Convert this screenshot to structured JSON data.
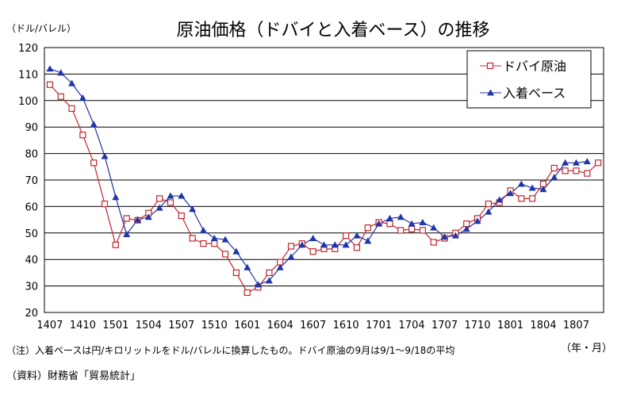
{
  "chart_data": {
    "type": "line",
    "title": "原油価格（ドバイと入着ベース）の推移",
    "ylabel": "（ドル/バレル）",
    "xlabel": "（年・月）",
    "ylim": [
      20,
      120
    ],
    "yticks": [
      20,
      30,
      40,
      50,
      60,
      70,
      80,
      90,
      100,
      110,
      120
    ],
    "grid": true,
    "legend_position": "top-right",
    "x": [
      "1407",
      "1408",
      "1409",
      "1410",
      "1411",
      "1412",
      "1501",
      "1502",
      "1503",
      "1504",
      "1505",
      "1506",
      "1507",
      "1508",
      "1509",
      "1510",
      "1511",
      "1512",
      "1601",
      "1602",
      "1603",
      "1604",
      "1605",
      "1606",
      "1607",
      "1608",
      "1609",
      "1610",
      "1611",
      "1612",
      "1701",
      "1702",
      "1703",
      "1704",
      "1705",
      "1706",
      "1707",
      "1708",
      "1709",
      "1710",
      "1711",
      "1712",
      "1801",
      "1802",
      "1803",
      "1804",
      "1805",
      "1806",
      "1807",
      "1808",
      "1809"
    ],
    "xtick_labels": [
      "1407",
      "1410",
      "1501",
      "1504",
      "1507",
      "1510",
      "1601",
      "1604",
      "1607",
      "1610",
      "1701",
      "1704",
      "1707",
      "1710",
      "1801",
      "1804",
      "1807"
    ],
    "series": [
      {
        "name": "ドバイ原油",
        "marker": "square-open",
        "color": "#c0282d",
        "values": [
          106,
          101.5,
          97,
          87,
          76.5,
          61,
          45.5,
          55.5,
          54.8,
          57.5,
          63,
          61.5,
          56.5,
          48,
          46,
          46,
          42,
          35,
          27.5,
          29.5,
          35,
          39,
          45,
          46,
          43,
          44,
          44,
          49,
          44.5,
          52,
          54,
          53.5,
          51,
          51.5,
          51,
          46.5,
          48,
          50,
          53.5,
          55.5,
          61,
          61.5,
          66,
          63,
          63,
          68.5,
          74.5,
          73.5,
          73.5,
          72.5,
          76.5
        ]
      },
      {
        "name": "入着ベース",
        "marker": "triangle-filled",
        "color": "#1f35a8",
        "values": [
          112,
          110.5,
          106.5,
          101,
          91,
          79,
          63.5,
          49.5,
          55,
          56,
          59.5,
          64,
          64,
          59,
          51,
          48,
          47.5,
          43,
          37,
          30.5,
          32,
          37,
          41,
          45.5,
          48,
          45.5,
          45.5,
          45.5,
          49,
          47,
          53.5,
          55.5,
          56,
          53.5,
          54,
          52,
          48.5,
          49,
          51.5,
          54.5,
          58,
          62.5,
          65,
          68.5,
          67,
          66.5,
          71,
          76.5,
          76.5,
          77,
          null
        ]
      }
    ]
  },
  "notes": {
    "note1": "（注）入着ベースは円/キロリットルをドル/バレルに換算したもの。ドバイ原油の9月は9/1～9/18の平均",
    "source": "（資料）財務省「貿易統計」"
  }
}
